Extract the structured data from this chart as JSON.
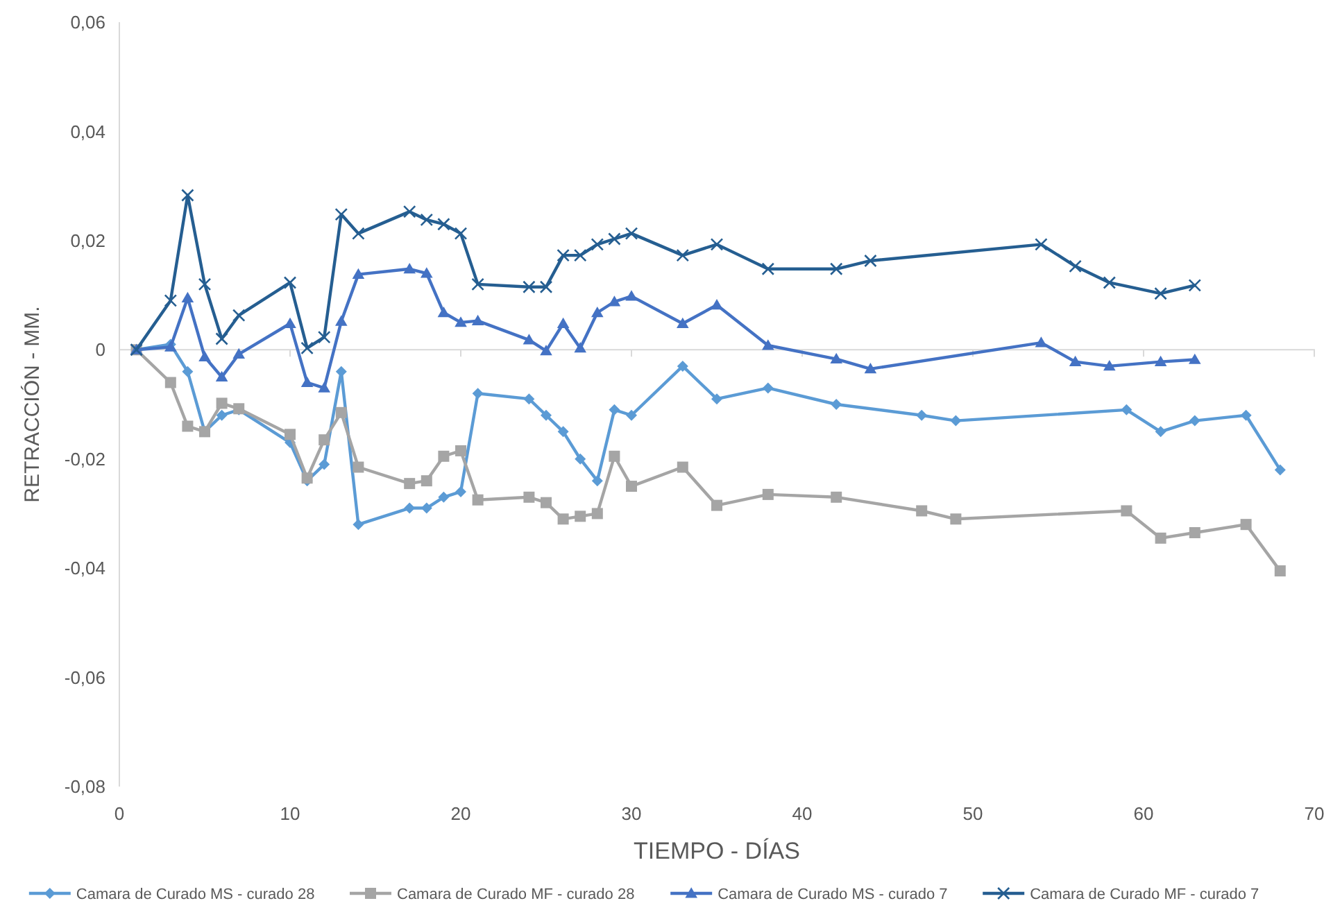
{
  "chart_data": {
    "type": "line",
    "xlabel": "TIEMPO - DÍAS",
    "ylabel": "RETRACCIÓN - MM.",
    "xlim": [
      0,
      70
    ],
    "xticks": [
      0,
      10,
      20,
      30,
      40,
      50,
      60,
      70
    ],
    "ylim": [
      -0.08,
      0.06
    ],
    "yticks": [
      {
        "value": -0.08,
        "label": "-0,08"
      },
      {
        "value": -0.06,
        "label": "-0,06"
      },
      {
        "value": -0.04,
        "label": "-0,04"
      },
      {
        "value": -0.02,
        "label": "-0,02"
      },
      {
        "value": 0,
        "label": "0"
      },
      {
        "value": 0.02,
        "label": "0,02"
      },
      {
        "value": 0.04,
        "label": "0,04"
      },
      {
        "value": 0.06,
        "label": "0,06"
      }
    ],
    "grid": false,
    "legend": "bottom",
    "line_style": "solid",
    "series": [
      {
        "name": "Camara de Curado MS - curado 28",
        "color": "#5b9bd5",
        "marker": "diamond",
        "x": [
          1,
          3,
          4,
          5,
          6,
          7,
          10,
          11,
          12,
          13,
          14,
          17,
          18,
          19,
          20,
          21,
          24,
          25,
          26,
          27,
          28,
          29,
          30,
          33,
          35,
          38,
          42,
          47,
          49,
          59,
          61,
          63,
          66,
          68
        ],
        "values": [
          0,
          0.001,
          -0.004,
          -0.015,
          -0.012,
          -0.011,
          -0.017,
          -0.024,
          -0.021,
          -0.004,
          -0.032,
          -0.029,
          -0.029,
          -0.027,
          -0.026,
          -0.008,
          -0.009,
          -0.012,
          -0.015,
          -0.02,
          -0.024,
          -0.011,
          -0.012,
          -0.003,
          -0.009,
          -0.007,
          -0.01,
          -0.012,
          -0.013,
          -0.011,
          -0.015,
          -0.013,
          -0.012,
          -0.022
        ]
      },
      {
        "name": "Camara de Curado MF - curado 28",
        "color": "#a5a5a5",
        "marker": "square",
        "x": [
          1,
          3,
          4,
          5,
          6,
          7,
          10,
          11,
          12,
          13,
          14,
          17,
          18,
          19,
          20,
          21,
          24,
          25,
          26,
          27,
          28,
          29,
          30,
          33,
          35,
          38,
          42,
          47,
          49,
          59,
          61,
          63,
          66,
          68
        ],
        "values": [
          0,
          -0.006,
          -0.014,
          -0.015,
          -0.0098,
          -0.0108,
          -0.0155,
          -0.0235,
          -0.0165,
          -0.0115,
          -0.0215,
          -0.0245,
          -0.024,
          -0.0195,
          -0.0185,
          -0.0275,
          -0.027,
          -0.028,
          -0.031,
          -0.0305,
          -0.03,
          -0.0195,
          -0.025,
          -0.0215,
          -0.0285,
          -0.0265,
          -0.027,
          -0.0295,
          -0.031,
          -0.0295,
          -0.0345,
          -0.0335,
          -0.032,
          -0.0405
        ]
      },
      {
        "name": "Camara de Curado MS - curado 7",
        "color": "#4472c4",
        "marker": "triangle",
        "x": [
          1,
          3,
          4,
          5,
          6,
          7,
          10,
          11,
          12,
          13,
          14,
          17,
          18,
          19,
          20,
          21,
          24,
          25,
          26,
          27,
          28,
          29,
          30,
          33,
          35,
          38,
          42,
          44,
          54,
          56,
          58,
          61,
          63
        ],
        "values": [
          0,
          0.0005,
          0.0095,
          -0.0013,
          -0.005,
          -0.0008,
          0.0048,
          -0.006,
          -0.007,
          0.0052,
          0.0138,
          0.0148,
          0.014,
          0.0068,
          0.005,
          0.0053,
          0.0018,
          -0.0002,
          0.0048,
          0.0003,
          0.0068,
          0.0088,
          0.0098,
          0.0048,
          0.0082,
          0.0008,
          -0.0017,
          -0.0035,
          0.0013,
          -0.0022,
          -0.003,
          -0.0022,
          -0.0018
        ]
      },
      {
        "name": "Camara de Curado MF - curado 7",
        "color": "#255e91",
        "marker": "cross",
        "x": [
          1,
          3,
          4,
          5,
          6,
          7,
          10,
          11,
          12,
          13,
          14,
          17,
          18,
          19,
          20,
          21,
          24,
          25,
          26,
          27,
          28,
          29,
          30,
          33,
          35,
          38,
          42,
          44,
          54,
          56,
          58,
          61,
          63
        ],
        "values": [
          0,
          0.009,
          0.0283,
          0.012,
          0.002,
          0.0063,
          0.0123,
          0.0003,
          0.0023,
          0.0248,
          0.0213,
          0.0253,
          0.0238,
          0.023,
          0.0213,
          0.012,
          0.0115,
          0.0115,
          0.0173,
          0.0173,
          0.0193,
          0.0203,
          0.0213,
          0.0173,
          0.0193,
          0.0148,
          0.0148,
          0.0163,
          0.0193,
          0.0153,
          0.0123,
          0.0103,
          0.0118
        ]
      }
    ]
  }
}
